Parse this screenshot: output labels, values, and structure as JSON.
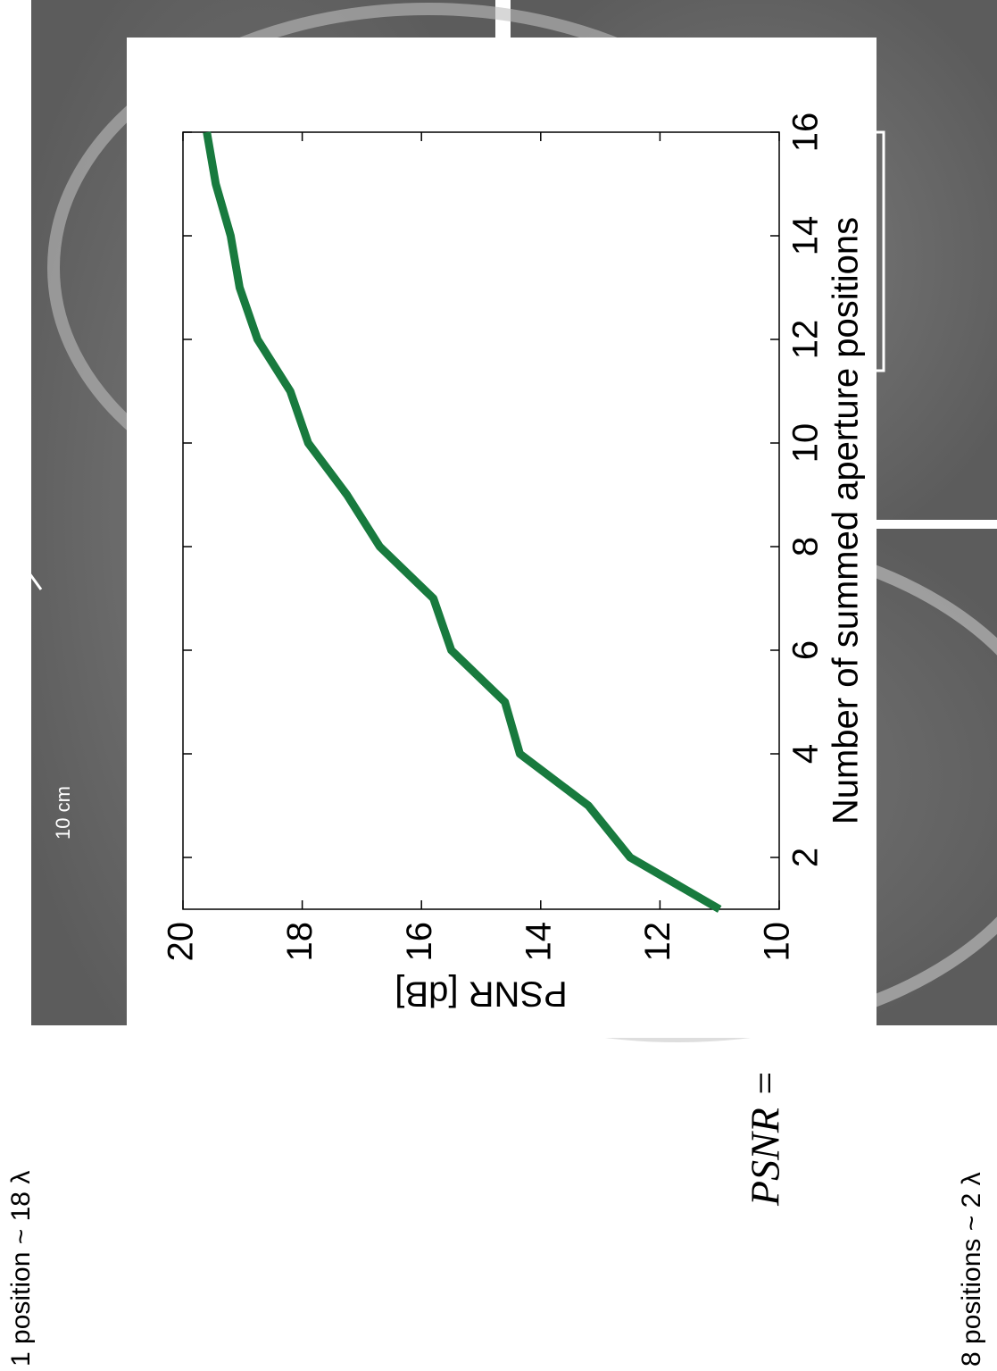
{
  "chart_data": {
    "type": "line",
    "x_label": "Number of summed aperture positions",
    "y_label": "PSNR [dB]",
    "x": [
      1,
      2,
      3,
      4,
      5,
      6,
      7,
      8,
      9,
      10,
      11,
      12,
      13,
      14,
      15,
      16
    ],
    "values": [
      11.0,
      12.5,
      13.2,
      14.35,
      14.6,
      15.5,
      15.8,
      16.7,
      17.25,
      17.9,
      18.2,
      18.75,
      19.05,
      19.2,
      19.45,
      19.6
    ],
    "color": "#187a3e",
    "xlim": [
      1,
      16
    ],
    "xticks": [
      2,
      4,
      6,
      8,
      10,
      12,
      14,
      16
    ],
    "ylim": [
      10,
      20
    ],
    "yticks": [
      10,
      12,
      14,
      16,
      18,
      20
    ],
    "grid": false
  },
  "labels": {
    "panel_1": "1 position ~ 18 λ",
    "panel_2": "8 positions ~ 2 λ",
    "formula": "PSNR = ",
    "scale_bar": "10 cm"
  }
}
